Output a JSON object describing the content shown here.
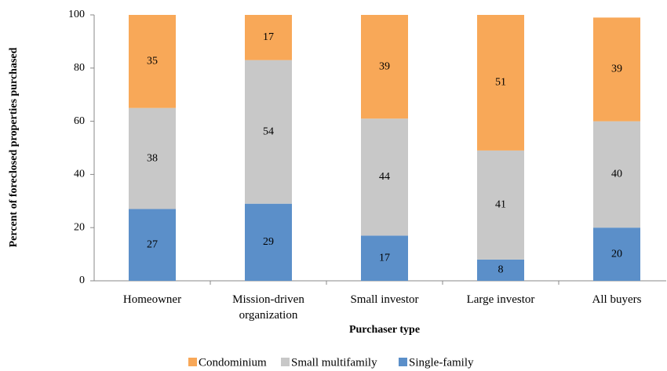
{
  "chart_data": {
    "type": "stacked_bar",
    "x_label": "Purchaser type",
    "y_label": "Percent of foreclosed properties purchased",
    "categories": [
      "Homeowner",
      "Mission-driven organization",
      "Small investor",
      "Large investor",
      "All buyers"
    ],
    "series": [
      {
        "name": "Single-family",
        "color": "#5b8fc9",
        "values": [
          27,
          29,
          17,
          8,
          20
        ]
      },
      {
        "name": "Small multifamily",
        "color": "#c8c8c8",
        "values": [
          38,
          54,
          44,
          41,
          40
        ]
      },
      {
        "name": "Condominium",
        "color": "#f8a858",
        "values": [
          35,
          17,
          39,
          51,
          39
        ]
      }
    ],
    "ylim": [
      0,
      100
    ],
    "yticks": [
      0,
      20,
      40,
      60,
      80,
      100
    ],
    "grid": false
  }
}
